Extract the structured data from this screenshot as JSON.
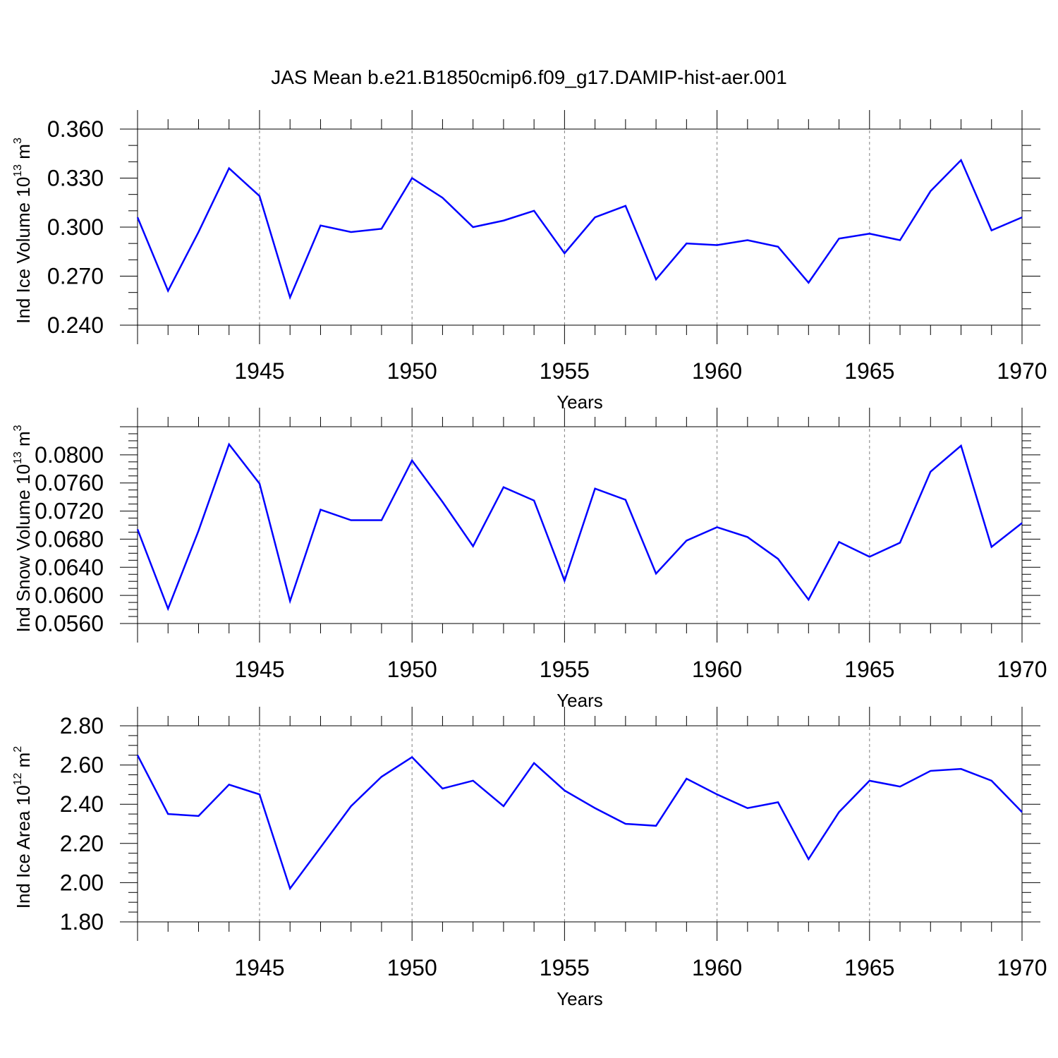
{
  "figure": {
    "title": "JAS Mean b.e21.B1850cmip6.f09_g17.DAMIP-hist-aer.001",
    "line_color": "#0000ff",
    "grid_color": "#7f7f7f"
  },
  "chart_data": [
    {
      "type": "line",
      "title": "JAS Mean b.e21.B1850cmip6.f09_g17.DAMIP-hist-aer.001",
      "xlabel": "Years",
      "ylabel": "Ind Ice Volume 10",
      "ylabel_exponent": "13",
      "ylabel_unit": " m",
      "ylabel_unit_exponent": "3",
      "xlim": [
        1941,
        1970
      ],
      "ylim": [
        0.24,
        0.36
      ],
      "yticks": [
        0.24,
        0.27,
        0.3,
        0.33,
        0.36
      ],
      "ytick_labels": [
        "0.240",
        "0.270",
        "0.300",
        "0.330",
        "0.360"
      ],
      "yminor_step": 0.01,
      "xticks": [
        1945,
        1950,
        1955,
        1960,
        1965,
        1970
      ],
      "xtick_labels": [
        "1945",
        "1950",
        "1955",
        "1960",
        "1965",
        "1970"
      ],
      "grid": "dashed vertical lines at major x ticks",
      "series": [
        {
          "name": "Ind Ice Volume",
          "x": [
            1941,
            1942,
            1943,
            1944,
            1945,
            1946,
            1947,
            1948,
            1949,
            1950,
            1951,
            1952,
            1953,
            1954,
            1955,
            1956,
            1957,
            1958,
            1959,
            1960,
            1961,
            1962,
            1963,
            1964,
            1965,
            1966,
            1967,
            1968,
            1969,
            1970
          ],
          "y": [
            0.306,
            0.261,
            0.297,
            0.336,
            0.319,
            0.257,
            0.301,
            0.297,
            0.299,
            0.33,
            0.318,
            0.3,
            0.304,
            0.31,
            0.284,
            0.306,
            0.313,
            0.268,
            0.29,
            0.289,
            0.292,
            0.288,
            0.266,
            0.293,
            0.296,
            0.292,
            0.322,
            0.341,
            0.298,
            0.306
          ]
        }
      ]
    },
    {
      "type": "line",
      "xlabel": "Years",
      "ylabel": "Ind Snow Volume 10",
      "ylabel_exponent": "13",
      "ylabel_unit": " m",
      "ylabel_unit_exponent": "3",
      "xlim": [
        1941,
        1970
      ],
      "ylim": [
        0.056,
        0.084
      ],
      "yticks": [
        0.056,
        0.06,
        0.064,
        0.068,
        0.072,
        0.076,
        0.08
      ],
      "ytick_labels": [
        "0.0560",
        "0.0600",
        "0.0640",
        "0.0680",
        "0.0720",
        "0.0760",
        "0.0800"
      ],
      "yminor_step": 0.001,
      "xticks": [
        1945,
        1950,
        1955,
        1960,
        1965,
        1970
      ],
      "xtick_labels": [
        "1945",
        "1950",
        "1955",
        "1960",
        "1965",
        "1970"
      ],
      "grid": "dashed vertical lines at major x ticks",
      "series": [
        {
          "name": "Ind Snow Volume",
          "x": [
            1941,
            1942,
            1943,
            1944,
            1945,
            1946,
            1947,
            1948,
            1949,
            1950,
            1951,
            1952,
            1953,
            1954,
            1955,
            1956,
            1957,
            1958,
            1959,
            1960,
            1961,
            1962,
            1963,
            1964,
            1965,
            1966,
            1967,
            1968,
            1969,
            1970
          ],
          "y": [
            0.0694,
            0.0581,
            0.0692,
            0.0815,
            0.0759,
            0.0592,
            0.0722,
            0.0707,
            0.0707,
            0.0792,
            0.0733,
            0.067,
            0.0754,
            0.0735,
            0.0621,
            0.0752,
            0.0736,
            0.0631,
            0.0678,
            0.0697,
            0.0683,
            0.0652,
            0.0594,
            0.0676,
            0.0655,
            0.0675,
            0.0776,
            0.0813,
            0.0669,
            0.0703
          ]
        }
      ]
    },
    {
      "type": "line",
      "xlabel": "Years",
      "ylabel": "Ind Ice Area 10",
      "ylabel_exponent": "12",
      "ylabel_unit": " m",
      "ylabel_unit_exponent": "2",
      "xlim": [
        1941,
        1970
      ],
      "ylim": [
        1.8,
        2.8
      ],
      "yticks": [
        1.8,
        2.0,
        2.2,
        2.4,
        2.6,
        2.8
      ],
      "ytick_labels": [
        "1.80",
        "2.00",
        "2.20",
        "2.40",
        "2.60",
        "2.80"
      ],
      "yminor_step": 0.05,
      "xticks": [
        1945,
        1950,
        1955,
        1960,
        1965,
        1970
      ],
      "xtick_labels": [
        "1945",
        "1950",
        "1955",
        "1960",
        "1965",
        "1970"
      ],
      "grid": "dashed vertical lines at major x ticks",
      "series": [
        {
          "name": "Ind Ice Area",
          "x": [
            1941,
            1942,
            1943,
            1944,
            1945,
            1946,
            1947,
            1948,
            1949,
            1950,
            1951,
            1952,
            1953,
            1954,
            1955,
            1956,
            1957,
            1958,
            1959,
            1960,
            1961,
            1962,
            1963,
            1964,
            1965,
            1966,
            1967,
            1968,
            1969,
            1970
          ],
          "y": [
            2.65,
            2.35,
            2.34,
            2.5,
            2.45,
            1.97,
            2.18,
            2.39,
            2.54,
            2.64,
            2.48,
            2.52,
            2.39,
            2.61,
            2.47,
            2.38,
            2.3,
            2.29,
            2.53,
            2.45,
            2.38,
            2.41,
            2.12,
            2.36,
            2.52,
            2.49,
            2.57,
            2.58,
            2.52,
            2.36
          ]
        }
      ]
    }
  ]
}
